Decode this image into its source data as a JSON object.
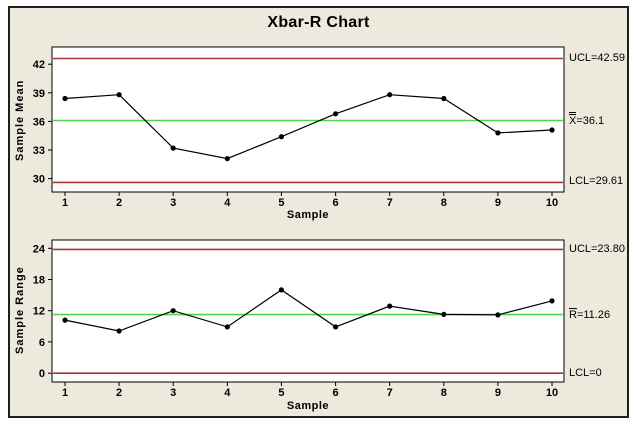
{
  "title": "Xbar-R Chart",
  "colors": {
    "frame_background": "#EDE9DC",
    "plot_background": "#FFFFFF",
    "limit_line": "#A83838",
    "center_line": "#4FD64F",
    "data_series": "#000000",
    "frame_border": "#1F1F1F",
    "text": "#000000"
  },
  "chart_data": [
    {
      "type": "line",
      "name": "xbar-chart",
      "ylabel": "Sample Mean",
      "xlabel": "Sample",
      "x": [
        1,
        2,
        3,
        4,
        5,
        6,
        7,
        8,
        9,
        10
      ],
      "values": [
        38.4,
        38.8,
        33.2,
        32.1,
        34.4,
        36.8,
        38.8,
        38.4,
        34.8,
        35.1
      ],
      "yticks": [
        30,
        33,
        36,
        39,
        42
      ],
      "ylim": [
        28.6,
        43.8
      ],
      "ucl": 42.59,
      "center": 36.1,
      "lcl": 29.61,
      "grid": false,
      "legend": "none",
      "annotations": {
        "ucl": "UCL=42.59",
        "center_symbol": "X",
        "center_bar": "double",
        "center_rest": "=36.1",
        "lcl": "LCL=29.61"
      }
    },
    {
      "type": "line",
      "name": "r-chart",
      "ylabel": "Sample Range",
      "xlabel": "Sample",
      "x": [
        1,
        2,
        3,
        4,
        5,
        6,
        7,
        8,
        9,
        10
      ],
      "values": [
        10.2,
        8.1,
        12.0,
        8.9,
        16.0,
        8.9,
        12.9,
        11.3,
        11.2,
        13.9
      ],
      "yticks": [
        0,
        6,
        12,
        18,
        24
      ],
      "ylim": [
        -1.7,
        25.6
      ],
      "ucl": 23.8,
      "center": 11.26,
      "lcl": 0,
      "grid": false,
      "legend": "none",
      "annotations": {
        "ucl": "UCL=23.80",
        "center_symbol": "R",
        "center_bar": "single",
        "center_rest": "=11.26",
        "lcl": "LCL=0"
      }
    }
  ]
}
